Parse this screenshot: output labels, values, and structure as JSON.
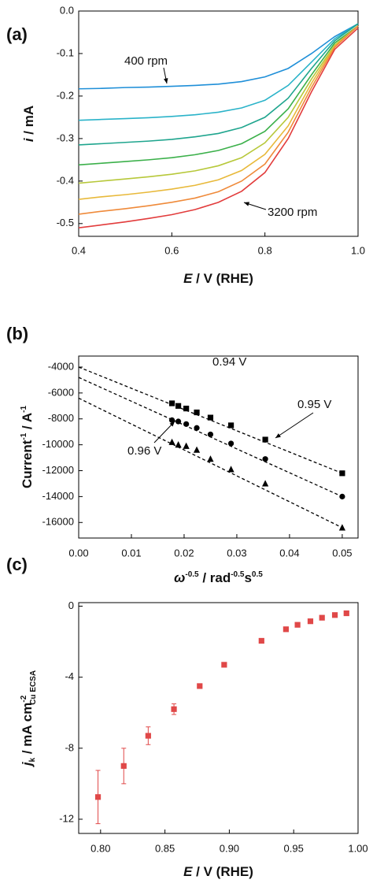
{
  "chart_data": [
    {
      "type": "line",
      "panel_label": "(a)",
      "xlabel": [
        "E",
        " / V (RHE)"
      ],
      "ylabel": [
        "i",
        " / mA"
      ],
      "x": [
        0.4,
        0.45,
        0.5,
        0.55,
        0.6,
        0.65,
        0.7,
        0.75,
        0.8,
        0.85,
        0.9,
        0.95,
        1.0
      ],
      "series": [
        {
          "color": "#1f8fd8",
          "values": [
            -0.183,
            -0.182,
            -0.18,
            -0.179,
            -0.177,
            -0.175,
            -0.172,
            -0.166,
            -0.155,
            -0.135,
            -0.1,
            -0.06,
            -0.03
          ]
        },
        {
          "color": "#2ab3c9",
          "values": [
            -0.257,
            -0.255,
            -0.253,
            -0.251,
            -0.248,
            -0.244,
            -0.238,
            -0.228,
            -0.21,
            -0.175,
            -0.12,
            -0.065,
            -0.03
          ]
        },
        {
          "color": "#1fa58e",
          "values": [
            -0.315,
            -0.312,
            -0.309,
            -0.306,
            -0.302,
            -0.296,
            -0.288,
            -0.274,
            -0.25,
            -0.205,
            -0.135,
            -0.07,
            -0.03
          ]
        },
        {
          "color": "#3bb04a",
          "values": [
            -0.362,
            -0.358,
            -0.354,
            -0.35,
            -0.345,
            -0.338,
            -0.328,
            -0.312,
            -0.283,
            -0.23,
            -0.15,
            -0.075,
            -0.035
          ]
        },
        {
          "color": "#b7c83a",
          "values": [
            -0.405,
            -0.4,
            -0.395,
            -0.39,
            -0.384,
            -0.376,
            -0.364,
            -0.345,
            -0.31,
            -0.25,
            -0.16,
            -0.08,
            -0.035
          ]
        },
        {
          "color": "#e8b93a",
          "values": [
            -0.443,
            -0.437,
            -0.432,
            -0.426,
            -0.419,
            -0.41,
            -0.397,
            -0.375,
            -0.337,
            -0.27,
            -0.17,
            -0.082,
            -0.035
          ]
        },
        {
          "color": "#ef8a3a",
          "values": [
            -0.478,
            -0.471,
            -0.465,
            -0.458,
            -0.45,
            -0.44,
            -0.425,
            -0.4,
            -0.36,
            -0.285,
            -0.18,
            -0.085,
            -0.035
          ]
        },
        {
          "color": "#e23c3c",
          "values": [
            -0.51,
            -0.503,
            -0.496,
            -0.488,
            -0.479,
            -0.467,
            -0.45,
            -0.424,
            -0.38,
            -0.3,
            -0.19,
            -0.09,
            -0.04
          ]
        }
      ],
      "annotations": [
        "400 rpm",
        "3200 rpm"
      ],
      "xlim": [
        0.4,
        1.0
      ],
      "ylim": [
        -0.53,
        0
      ],
      "xticks": [
        0.4,
        0.6,
        0.8,
        {
          "value": 1,
          "label": "1.0"
        }
      ],
      "yticks": [
        {
          "value": 0,
          "label": "0.0"
        },
        -0.1,
        -0.2,
        -0.3,
        -0.4,
        -0.5
      ]
    },
    {
      "type": "scatter",
      "panel_label": "(b)",
      "xlabel": [
        "ω",
        "-0.5",
        " / rad",
        "-0.5",
        "s",
        "0.5"
      ],
      "ylabel": [
        "Current",
        "-1",
        " / A",
        "-1"
      ],
      "x": [
        0.0177,
        0.0189,
        0.0204,
        0.0224,
        0.025,
        0.0289,
        0.0354,
        0.05
      ],
      "series": [
        {
          "name": "0.94 V",
          "color": "#000000",
          "marker": "square",
          "values": [
            -6800,
            -7000,
            -7200,
            -7500,
            -7900,
            -8500,
            -9600,
            -12200
          ],
          "fit_x": [
            0,
            0.05
          ],
          "fit_y": [
            -4000,
            -12200
          ]
        },
        {
          "name": "0.95 V",
          "color": "#000000",
          "marker": "circle",
          "values": [
            -8100,
            -8200,
            -8400,
            -8700,
            -9200,
            -9900,
            -11100,
            -14000
          ],
          "fit_x": [
            0,
            0.05
          ],
          "fit_y": [
            -4800,
            -14000
          ]
        },
        {
          "name": "0.96 V",
          "color": "#000000",
          "marker": "triangle",
          "values": [
            -9800,
            -10000,
            -10100,
            -10400,
            -11100,
            -11900,
            -13000,
            -16400
          ],
          "fit_x": [
            0,
            0.05
          ],
          "fit_y": [
            -6400,
            -16400
          ]
        }
      ],
      "xlim": [
        0,
        0.053
      ],
      "ylim": [
        -17200,
        -3150
      ],
      "xticks": [
        {
          "value": 0,
          "label": "0.00"
        },
        0.01,
        0.02,
        0.03,
        0.04,
        0.05
      ],
      "yticks": [
        -4000,
        -6000,
        -8000,
        -10000,
        -12000,
        -14000,
        -16000
      ]
    },
    {
      "type": "scatter",
      "panel_label": "(c)",
      "xlabel": [
        "E",
        " / V (RHE)"
      ],
      "ylabel": [
        "j",
        "k",
        " / mA cm",
        "-2",
        "Cu ECSA"
      ],
      "x": [
        0.798,
        0.818,
        0.837,
        0.857,
        0.877,
        0.896,
        0.925,
        0.944,
        0.953,
        0.963,
        0.972,
        0.982,
        0.991
      ],
      "series": [
        {
          "color": "#e04848",
          "marker": "square",
          "values": [
            -10.75,
            -9.0,
            -7.3,
            -5.8,
            -4.5,
            -3.3,
            -1.95,
            -1.3,
            -1.05,
            -0.85,
            -0.65,
            -0.5,
            -0.4
          ],
          "errors": [
            1.5,
            1.0,
            0.5,
            0.3,
            0.1,
            0.05,
            0.05,
            0.05,
            0.05,
            0.05,
            0.05,
            0.05,
            0.05
          ]
        }
      ],
      "xlim": [
        0.783,
        1.0
      ],
      "ylim": [
        -12.8,
        0.2
      ],
      "xticks": [
        {
          "value": 0.8,
          "label": "0.80"
        },
        0.85,
        {
          "value": 0.9,
          "label": "0.90"
        },
        0.95,
        {
          "value": 1,
          "label": "1.00"
        }
      ],
      "yticks": [
        0,
        -4,
        -8,
        -12
      ]
    }
  ]
}
